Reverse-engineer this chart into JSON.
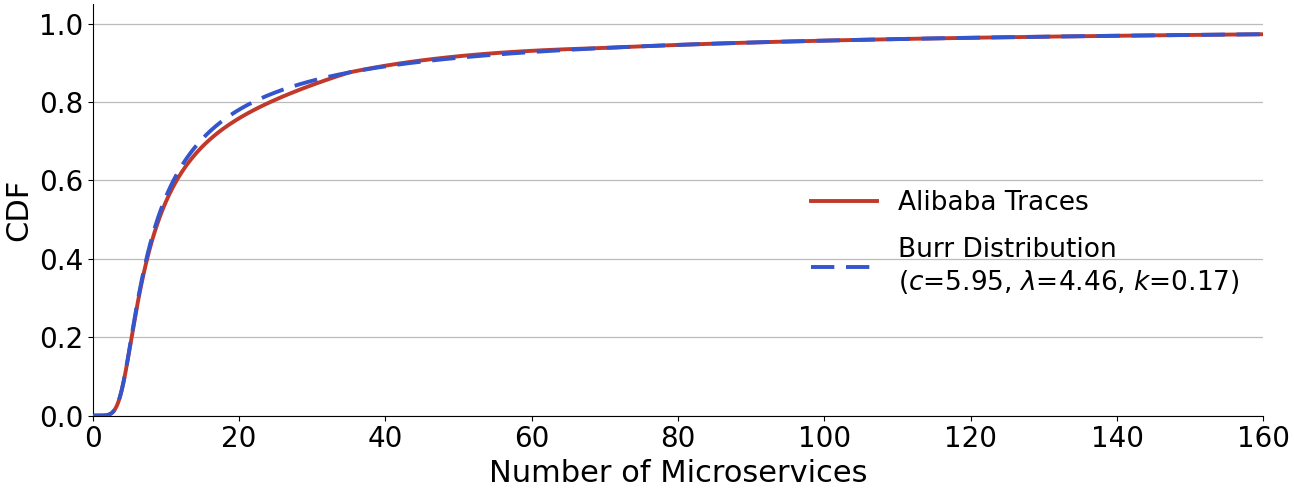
{
  "title": "",
  "xlabel": "Number of Microservices",
  "ylabel": "CDF",
  "xlim": [
    0,
    160
  ],
  "ylim": [
    0.0,
    1.05
  ],
  "xticks": [
    0,
    20,
    40,
    60,
    80,
    100,
    120,
    140,
    160
  ],
  "yticks": [
    0.0,
    0.2,
    0.4,
    0.6,
    0.8,
    1.0
  ],
  "burr_c": 5.95,
  "burr_lam": 4.46,
  "burr_k": 0.17,
  "alibaba_color": "#c0392b",
  "burr_color": "#3555cc",
  "alibaba_linewidth": 2.8,
  "burr_linewidth": 2.8,
  "xlabel_fontsize": 22,
  "ylabel_fontsize": 22,
  "tick_fontsize": 20,
  "legend_fontsize": 19,
  "background_color": "#ffffff",
  "grid_color": "#bbbbbb",
  "legend_label_alibaba": "Alibaba Traces",
  "legend_label_burr": "Burr Distribution\n($c$=5.95, $\\lambda$=4.46, $k$=0.17)"
}
